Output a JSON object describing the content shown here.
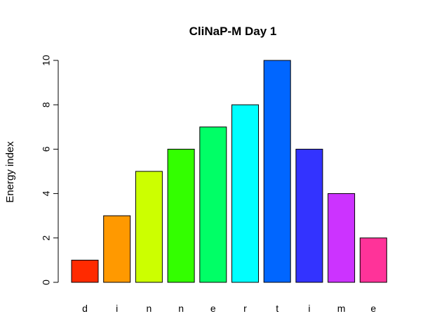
{
  "chart_data": {
    "type": "bar",
    "title": "CliNaP-M Day 1",
    "xlabel": "",
    "ylabel": "Energy index",
    "categories": [
      "d",
      "i",
      "n",
      "n",
      "e",
      "r",
      "t",
      "i",
      "m",
      "e"
    ],
    "values": [
      1,
      3,
      5,
      6,
      7,
      8,
      10,
      6,
      4,
      2
    ],
    "colors": [
      "#FF2A00",
      "#FF9900",
      "#CCFF00",
      "#33FF00",
      "#00FF66",
      "#00FFFF",
      "#0066FF",
      "#3333FF",
      "#CC33FF",
      "#FF3399"
    ],
    "yticks": [
      0,
      2,
      4,
      6,
      8,
      10
    ],
    "ylim": [
      0,
      10
    ],
    "grid": false,
    "legend": "none"
  }
}
